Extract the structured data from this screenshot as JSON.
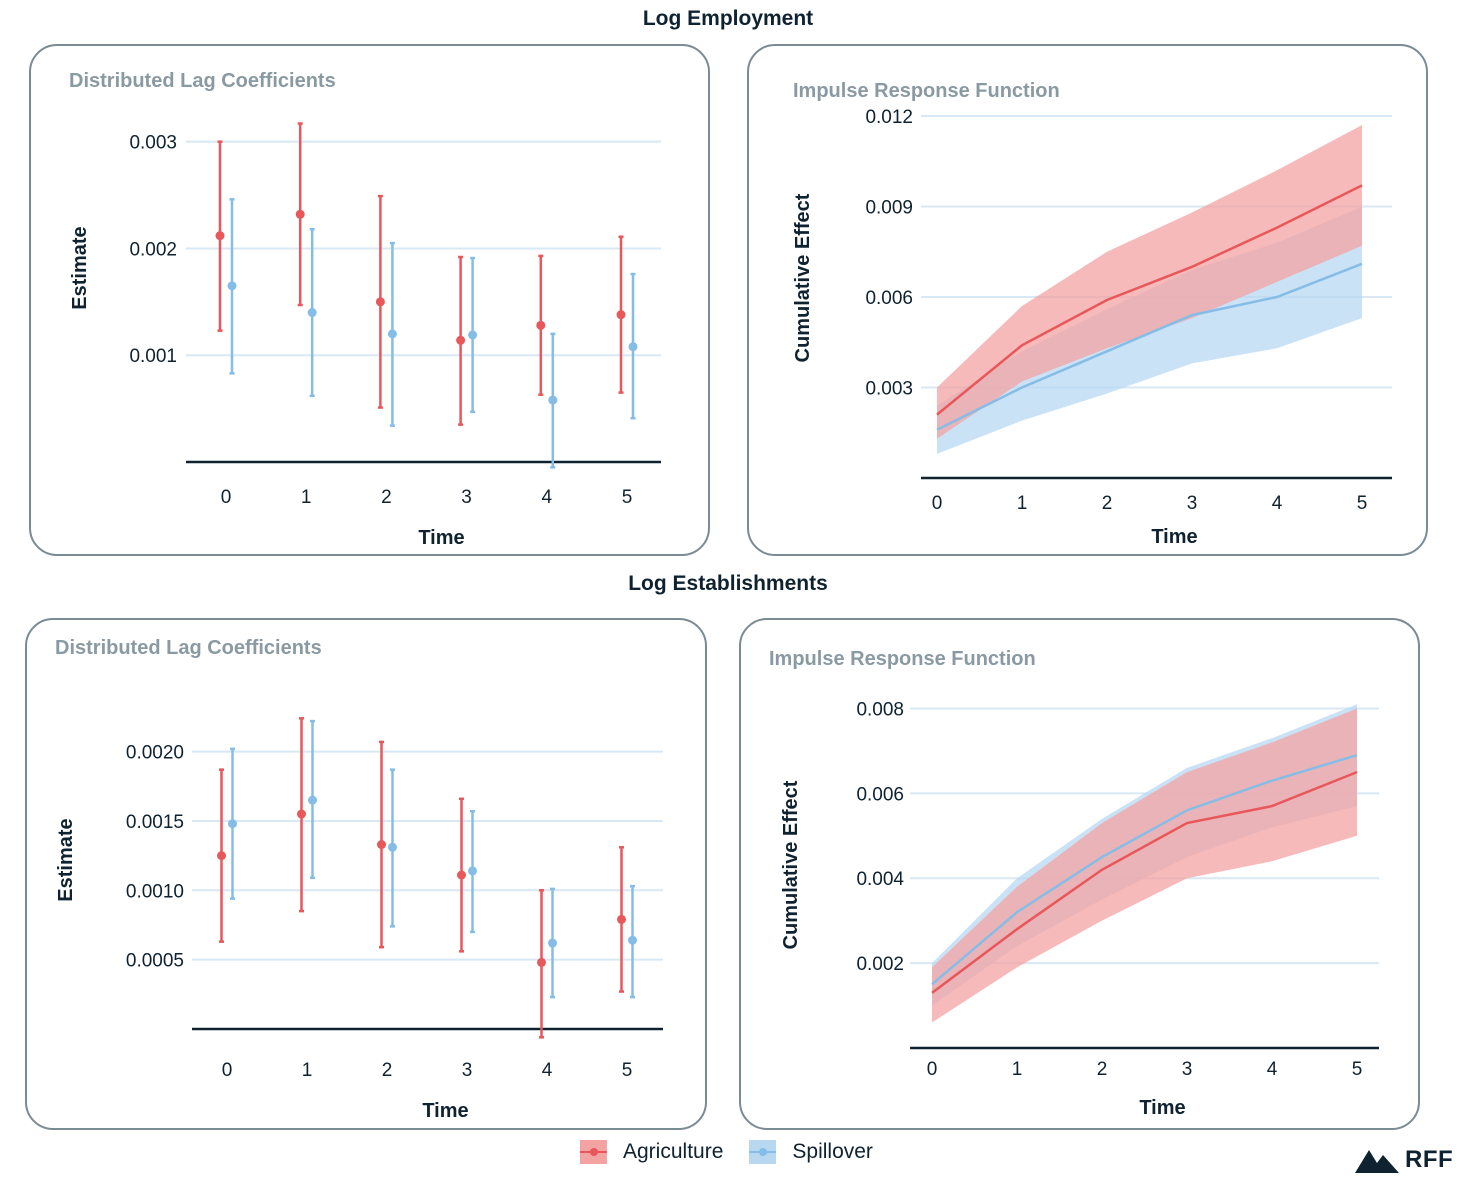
{
  "colors": {
    "agriculture": "#e8575a",
    "agriculture_band": "#f4a3a3",
    "spillover": "#85bde6",
    "spillover_band": "#b8d8f2",
    "grid": "#d8e8f4",
    "axis": "#0f2230"
  },
  "sections": {
    "top_title": "Log Employment",
    "bottom_title": "Log Establishments"
  },
  "legend": {
    "agriculture": "Agriculture",
    "spillover": "Spillover"
  },
  "logo": {
    "text": "RFF",
    "icon": "mountain-icon"
  },
  "chart_data": [
    {
      "id": "emp_dl",
      "type": "errorbar",
      "section": "Log Employment",
      "title": "Distributed Lag Coefficients",
      "xlabel": "Time",
      "ylabel": "Estimate",
      "categories": [
        "0",
        "1",
        "2",
        "3",
        "4",
        "5"
      ],
      "ylim": [
        0.0,
        0.0031
      ],
      "yticks": [
        0.001,
        0.002,
        0.003
      ],
      "ytick_labels": [
        "0.001",
        "0.002",
        "0.003"
      ],
      "series": [
        {
          "name": "Agriculture",
          "estimate": [
            0.00212,
            0.00232,
            0.0015,
            0.00114,
            0.00128,
            0.00138
          ],
          "lower": [
            0.00123,
            0.00147,
            0.00051,
            0.00035,
            0.00063,
            0.00065
          ],
          "upper": [
            0.003,
            0.00317,
            0.00249,
            0.00192,
            0.00193,
            0.00211
          ]
        },
        {
          "name": "Spillover",
          "estimate": [
            0.00165,
            0.0014,
            0.0012,
            0.00119,
            0.00058,
            0.00108
          ],
          "lower": [
            0.00083,
            0.00062,
            0.00034,
            0.00047,
            -5e-05,
            0.00041
          ],
          "upper": [
            0.00246,
            0.00218,
            0.00205,
            0.00191,
            0.0012,
            0.00176
          ]
        }
      ]
    },
    {
      "id": "emp_irf",
      "type": "area",
      "section": "Log Employment",
      "title": "Impulse Response Function",
      "xlabel": "Time",
      "ylabel": "Cumulative Effect",
      "x": [
        0,
        1,
        2,
        3,
        4,
        5
      ],
      "ylim": [
        0.0,
        0.012
      ],
      "yticks": [
        0.003,
        0.006,
        0.009,
        0.012
      ],
      "ytick_labels": [
        "0.003",
        "0.006",
        "0.009",
        "0.012"
      ],
      "series": [
        {
          "name": "Agriculture",
          "values": [
            0.0021,
            0.0044,
            0.0059,
            0.007,
            0.0083,
            0.0097
          ],
          "lower": [
            0.0013,
            0.0032,
            0.0043,
            0.0053,
            0.0065,
            0.0077
          ],
          "upper": [
            0.003,
            0.0057,
            0.0075,
            0.0088,
            0.0102,
            0.0117
          ]
        },
        {
          "name": "Spillover",
          "values": [
            0.0016,
            0.003,
            0.0042,
            0.0054,
            0.006,
            0.0071
          ],
          "lower": [
            0.0008,
            0.0019,
            0.0028,
            0.0038,
            0.0043,
            0.0053
          ],
          "upper": [
            0.0024,
            0.0042,
            0.0056,
            0.0069,
            0.0078,
            0.009
          ]
        }
      ]
    },
    {
      "id": "est_dl",
      "type": "errorbar",
      "section": "Log Establishments",
      "title": "Distributed Lag Coefficients",
      "xlabel": "Time",
      "ylabel": "Estimate",
      "categories": [
        "0",
        "1",
        "2",
        "3",
        "4",
        "5"
      ],
      "ylim": [
        0.0,
        0.0023
      ],
      "yticks": [
        0.0005,
        0.001,
        0.0015,
        0.002
      ],
      "ytick_labels": [
        "0.0005",
        "0.0010",
        "0.0015",
        "0.0020"
      ],
      "series": [
        {
          "name": "Agriculture",
          "estimate": [
            0.00125,
            0.00155,
            0.00133,
            0.00111,
            0.00048,
            0.00079
          ],
          "lower": [
            0.00063,
            0.00085,
            0.00059,
            0.00056,
            -6e-05,
            0.00027
          ],
          "upper": [
            0.00187,
            0.00224,
            0.00207,
            0.00166,
            0.001,
            0.00131
          ]
        },
        {
          "name": "Spillover",
          "estimate": [
            0.00148,
            0.00165,
            0.00131,
            0.00114,
            0.00062,
            0.00064
          ],
          "lower": [
            0.00094,
            0.00109,
            0.00074,
            0.0007,
            0.00023,
            0.00023
          ],
          "upper": [
            0.00202,
            0.00222,
            0.00187,
            0.00157,
            0.00101,
            0.00103
          ]
        }
      ]
    },
    {
      "id": "est_irf",
      "type": "area",
      "section": "Log Establishments",
      "title": "Impulse Response Function",
      "xlabel": "Time",
      "ylabel": "Cumulative Effect",
      "x": [
        0,
        1,
        2,
        3,
        4,
        5
      ],
      "ylim": [
        0.0,
        0.0082
      ],
      "yticks": [
        0.002,
        0.004,
        0.006,
        0.008
      ],
      "ytick_labels": [
        "0.002",
        "0.004",
        "0.006",
        "0.008"
      ],
      "series": [
        {
          "name": "Agriculture",
          "values": [
            0.0013,
            0.0028,
            0.0042,
            0.0053,
            0.0057,
            0.0065
          ],
          "lower": [
            0.0006,
            0.0019,
            0.003,
            0.004,
            0.0044,
            0.005
          ],
          "upper": [
            0.0019,
            0.0038,
            0.0053,
            0.0065,
            0.0072,
            0.008
          ]
        },
        {
          "name": "Spillover",
          "values": [
            0.0015,
            0.0032,
            0.0045,
            0.0056,
            0.0063,
            0.0069
          ],
          "lower": [
            0.001,
            0.0024,
            0.0035,
            0.0045,
            0.0052,
            0.0057
          ],
          "upper": [
            0.002,
            0.004,
            0.0054,
            0.0066,
            0.0073,
            0.0081
          ]
        }
      ]
    }
  ]
}
